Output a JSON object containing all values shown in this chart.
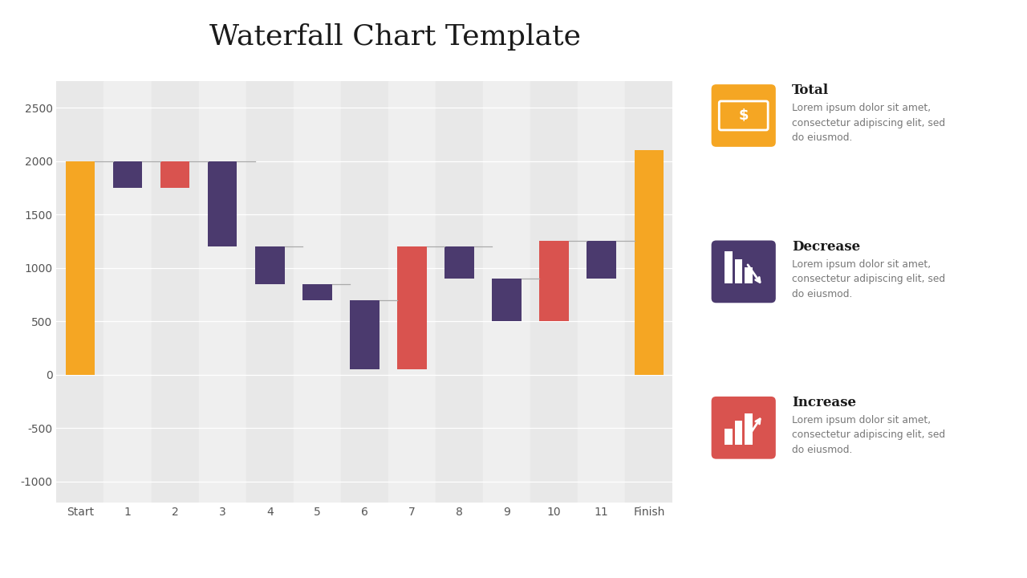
{
  "title": "Waterfall Chart Template",
  "title_fontsize": 26,
  "categories": [
    "Start",
    "1",
    "2",
    "3",
    "4",
    "5",
    "6",
    "7",
    "8",
    "9",
    "10",
    "11",
    "Finish"
  ],
  "bar_types": [
    "total",
    "decrease",
    "increase",
    "decrease",
    "decrease",
    "decrease",
    "decrease",
    "increase",
    "decrease",
    "decrease",
    "increase",
    "decrease",
    "total"
  ],
  "running_values": [
    2000,
    1750,
    2000,
    1200,
    850,
    700,
    50,
    1200,
    900,
    500,
    1250,
    900,
    2100
  ],
  "color_total": "#F5A623",
  "color_increase": "#D9534F",
  "color_decrease": "#4B3A6E",
  "bg_color": "#f0f0f0",
  "col_even": "#e8e8e8",
  "col_odd": "#efefef",
  "grid_color": "#ffffff",
  "ylim": [
    -1200,
    2750
  ],
  "yticks": [
    -1000,
    -500,
    0,
    500,
    1000,
    1500,
    2000,
    2500
  ],
  "legend_items": [
    {
      "label": "Total",
      "color": "#F5A623",
      "desc": "Lorem ipsum dolor sit amet,\nconsectetur adipiscing elit, sed\ndo eiusmod."
    },
    {
      "label": "Decrease",
      "color": "#4B3A6E",
      "desc": "Lorem ipsum dolor sit amet,\nconsectetur adipiscing elit, sed\ndo eiusmod."
    },
    {
      "label": "Increase",
      "color": "#D9534F",
      "desc": "Lorem ipsum dolor sit amet,\nconsectetur adipiscing elit, sed\ndo eiusmod."
    }
  ]
}
